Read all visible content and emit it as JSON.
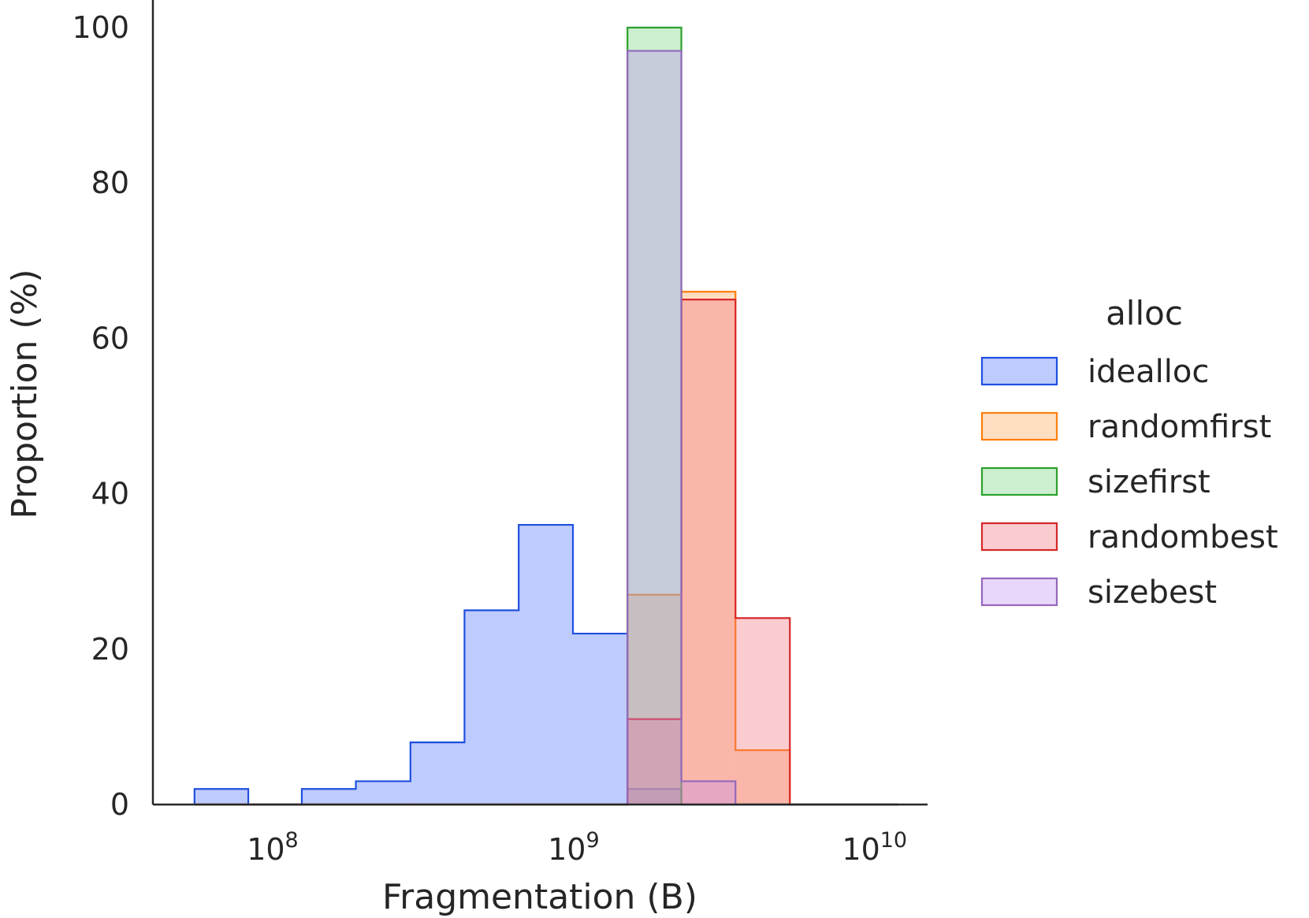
{
  "chart_data": {
    "type": "bar",
    "subtype": "step-histogram",
    "title": "",
    "xlabel": "Fragmentation (B)",
    "ylabel": "Proportion (%)",
    "xscale": "log",
    "xlim": [
      40000000,
      15000000000
    ],
    "ylim": [
      0,
      100
    ],
    "xticks": [
      {
        "value": 100000000,
        "base": "10",
        "exp": "8"
      },
      {
        "value": 1000000000,
        "base": "10",
        "exp": "9"
      },
      {
        "value": 10000000000,
        "base": "10",
        "exp": "10"
      }
    ],
    "yticks": [
      0,
      20,
      40,
      60,
      80,
      100
    ],
    "grid": false,
    "legend": {
      "title": "alloc",
      "position": "right"
    },
    "bin_edges": [
      55000000,
      83000000,
      125000000,
      189000000,
      287000000,
      434000000,
      657000000,
      995000000,
      1510000000,
      2280000000,
      3450000000,
      5230000000,
      7920000000,
      12000000000
    ],
    "series": [
      {
        "name": "idealloc",
        "color": "#1f4fe0",
        "fill": "rgba(110,140,250,0.45)",
        "values": [
          2,
          0,
          2,
          3,
          8,
          25,
          36,
          22,
          2,
          0,
          0,
          0,
          0
        ]
      },
      {
        "name": "randomfirst",
        "color": "#ff7f0e",
        "fill": "rgba(255,160,80,0.35)",
        "values": [
          0,
          0,
          0,
          0,
          0,
          0,
          0,
          0,
          27,
          66,
          7,
          0,
          0
        ]
      },
      {
        "name": "sizefirst",
        "color": "#2ca02c",
        "fill": "rgba(110,210,120,0.35)",
        "values": [
          0,
          0,
          0,
          0,
          0,
          0,
          0,
          0,
          100,
          0,
          0,
          0,
          0
        ]
      },
      {
        "name": "randombest",
        "color": "#d62728",
        "fill": "rgba(240,110,120,0.35)",
        "values": [
          0,
          0,
          0,
          0,
          0,
          0,
          0,
          0,
          11,
          65,
          24,
          0,
          0
        ]
      },
      {
        "name": "sizebest",
        "color": "#9467bd",
        "fill": "rgba(190,140,240,0.35)",
        "values": [
          0,
          0,
          0,
          0,
          0,
          0,
          0,
          0,
          97,
          3,
          0,
          0,
          0
        ]
      }
    ]
  }
}
